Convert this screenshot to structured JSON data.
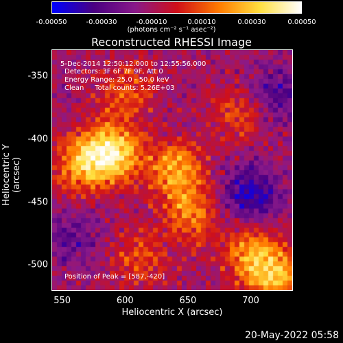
{
  "chart_data": {
    "type": "heatmap",
    "title": "Reconstructed RHESSI Image",
    "xlabel": "Heliocentric X (arcsec)",
    "ylabel": "Heliocentric Y (arcsec)",
    "xlim": [
      542,
      733
    ],
    "ylim": [
      -520,
      -329
    ],
    "x_ticks": [
      "550",
      "600",
      "650",
      "700"
    ],
    "x_tick_values": [
      550,
      600,
      650,
      700
    ],
    "y_ticks": [
      "-350",
      "-400",
      "-450",
      "-500"
    ],
    "y_tick_values": [
      -350,
      -400,
      -450,
      -500
    ],
    "colorbar": {
      "ticks": [
        "-0.00050",
        "-0.00030",
        "-0.00010",
        "0.00010",
        "0.00030",
        "0.00050"
      ],
      "tick_values": [
        -0.0005,
        -0.0003,
        -0.0001,
        0.0001,
        0.0003,
        0.0005
      ],
      "range": [
        -0.0005,
        0.0005
      ],
      "units": "(photons cm⁻² s⁻¹ asec⁻²)",
      "colormap": [
        "#0000ff",
        "#4b0082",
        "#8a1a8a",
        "#d0101a",
        "#ff7a00",
        "#ffe040",
        "#ffffff"
      ]
    },
    "annotations": {
      "time": "5-Dec-2014 12:50:12.000 to 12:55:56.000",
      "detectors": "Detectors: 3F 6F 7F 9F, Att 0",
      "energy": "Energy Range: 25.0 - 50.0 keV",
      "method": "Clean     Total counts: 5.26E+03",
      "peak": "Position of Peak = [587,-420]"
    },
    "sources": [
      {
        "x": 590,
        "y": -410,
        "intensity": 0.0005
      },
      {
        "x": 565,
        "y": -420,
        "intensity": 0.00034
      },
      {
        "x": 640,
        "y": -425,
        "intensity": 0.00036
      },
      {
        "x": 652,
        "y": -460,
        "intensity": 0.00028
      },
      {
        "x": 700,
        "y": -490,
        "intensity": 0.00032
      },
      {
        "x": 720,
        "y": -510,
        "intensity": 0.00036
      },
      {
        "x": 600,
        "y": -360,
        "intensity": 0.00022
      },
      {
        "x": 690,
        "y": -380,
        "intensity": 0.0002
      },
      {
        "x": 610,
        "y": -495,
        "intensity": 0.0002
      }
    ],
    "dark_regions": [
      {
        "x": 700,
        "y": -445,
        "intensity": -0.0003
      },
      {
        "x": 720,
        "y": -365,
        "intensity": -0.0002
      },
      {
        "x": 560,
        "y": -480,
        "intensity": -0.00015
      }
    ]
  },
  "timestamp": "20-May-2022 05:58"
}
